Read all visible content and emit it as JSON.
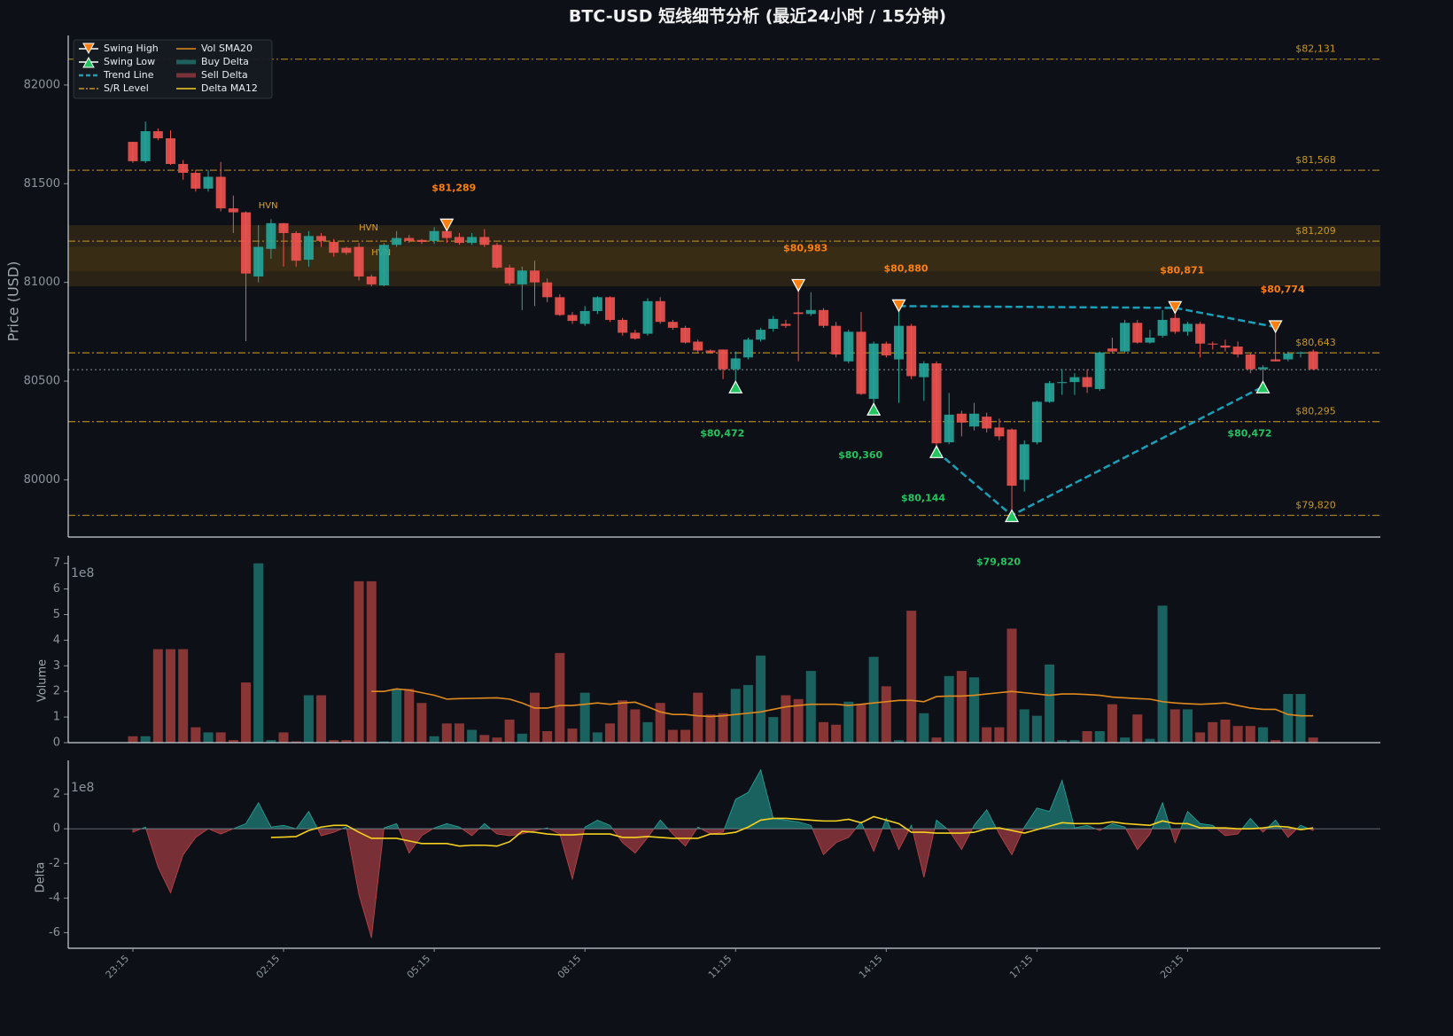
{
  "chart_data": {
    "type": "candlestick",
    "title": "BTC-USD 短线细节分析 (最近24小时 / 15分钟)",
    "ylabel": "Price (USD)",
    "ylim": [
      79710,
      82251
    ],
    "yticks": [
      80000,
      80500,
      81000,
      81500,
      82000
    ],
    "up_color": "#26a69a",
    "down_color": "#ef5350",
    "categories": [
      "23:15",
      null,
      null,
      null,
      null,
      null,
      null,
      null,
      null,
      null,
      null,
      null,
      "02:15",
      null,
      null,
      null,
      null,
      null,
      null,
      null,
      null,
      null,
      null,
      null,
      "05:15",
      null,
      null,
      null,
      null,
      null,
      null,
      null,
      null,
      null,
      null,
      null,
      "08:15",
      null,
      null,
      null,
      null,
      null,
      null,
      null,
      null,
      null,
      null,
      null,
      "11:15",
      null,
      null,
      null,
      null,
      null,
      null,
      null,
      null,
      null,
      null,
      null,
      "14:15",
      null,
      null,
      null,
      null,
      null,
      null,
      null,
      null,
      null,
      null,
      null,
      "17:15",
      null,
      null,
      null,
      null,
      null,
      null,
      null,
      null,
      null,
      null,
      null,
      "20:15",
      null,
      null,
      null,
      null,
      null,
      null,
      null,
      null,
      null,
      null
    ],
    "candles": [
      [
        81712,
        81712,
        81605,
        81614
      ],
      [
        81614,
        81815,
        81605,
        81766
      ],
      [
        81766,
        81780,
        81720,
        81730
      ],
      [
        81730,
        81770,
        81595,
        81600
      ],
      [
        81600,
        81620,
        81520,
        81555
      ],
      [
        81555,
        81570,
        81460,
        81475
      ],
      [
        81475,
        81570,
        81460,
        81535
      ],
      [
        81535,
        81610,
        81360,
        81375
      ],
      [
        81375,
        81440,
        81250,
        81355
      ],
      [
        81355,
        81360,
        80702,
        81045
      ],
      [
        81030,
        81290,
        81000,
        81180
      ],
      [
        81170,
        81320,
        81120,
        81300
      ],
      [
        81300,
        81300,
        81080,
        81250
      ],
      [
        81250,
        81260,
        81080,
        81110
      ],
      [
        81115,
        81260,
        81080,
        81235
      ],
      [
        81235,
        81250,
        81180,
        81210
      ],
      [
        81205,
        81220,
        81130,
        81150
      ],
      [
        81175,
        81180,
        81140,
        81150
      ],
      [
        81180,
        81200,
        81010,
        81030
      ],
      [
        81030,
        81040,
        80980,
        80990
      ],
      [
        80985,
        81200,
        80980,
        81190
      ],
      [
        81190,
        81260,
        81180,
        81225
      ],
      [
        81225,
        81240,
        81200,
        81210
      ],
      [
        81215,
        81220,
        81195,
        81205
      ],
      [
        81210,
        81280,
        81195,
        81260
      ],
      [
        81260,
        81289,
        81200,
        81225
      ],
      [
        81230,
        81250,
        81190,
        81200
      ],
      [
        81200,
        81250,
        81190,
        81230
      ],
      [
        81230,
        81270,
        81180,
        81190
      ],
      [
        81190,
        81200,
        81070,
        81075
      ],
      [
        81075,
        81090,
        80985,
        80995
      ],
      [
        80990,
        81080,
        80860,
        81060
      ],
      [
        81060,
        81110,
        80880,
        81000
      ],
      [
        81000,
        81020,
        80900,
        80925
      ],
      [
        80925,
        80940,
        80830,
        80835
      ],
      [
        80835,
        80850,
        80790,
        80805
      ],
      [
        80790,
        80880,
        80780,
        80855
      ],
      [
        80855,
        80930,
        80840,
        80925
      ],
      [
        80925,
        80930,
        80800,
        80810
      ],
      [
        80810,
        80820,
        80730,
        80745
      ],
      [
        80745,
        80760,
        80710,
        80715
      ],
      [
        80740,
        80920,
        80730,
        80905
      ],
      [
        80905,
        80925,
        80790,
        80800
      ],
      [
        80800,
        80810,
        80760,
        80770
      ],
      [
        80770,
        80780,
        80690,
        80695
      ],
      [
        80700,
        80710,
        80640,
        80655
      ],
      [
        80655,
        80660,
        80640,
        80645
      ],
      [
        80660,
        80660,
        80510,
        80560
      ],
      [
        80560,
        80650,
        80472,
        80615
      ],
      [
        80620,
        80720,
        80610,
        80710
      ],
      [
        80710,
        80770,
        80700,
        80760
      ],
      [
        80765,
        80830,
        80750,
        80815
      ],
      [
        80790,
        80810,
        80770,
        80780
      ],
      [
        80848,
        80983,
        80600,
        80840
      ],
      [
        80840,
        80950,
        80830,
        80860
      ],
      [
        80860,
        80870,
        80770,
        80780
      ],
      [
        80780,
        80800,
        80620,
        80635
      ],
      [
        80600,
        80760,
        80590,
        80750
      ],
      [
        80750,
        80850,
        80430,
        80435
      ],
      [
        80410,
        80700,
        80360,
        80690
      ],
      [
        80690,
        80700,
        80620,
        80630
      ],
      [
        80610,
        80880,
        80390,
        80780
      ],
      [
        80780,
        80790,
        80510,
        80525
      ],
      [
        80520,
        80600,
        80400,
        80590
      ],
      [
        80590,
        80600,
        80144,
        80185
      ],
      [
        80190,
        80440,
        80180,
        80330
      ],
      [
        80335,
        80350,
        80220,
        80290
      ],
      [
        80270,
        80390,
        80250,
        80335
      ],
      [
        80320,
        80340,
        80240,
        80260
      ],
      [
        80265,
        80310,
        80200,
        80220
      ],
      [
        80255,
        80260,
        79820,
        79970
      ],
      [
        80000,
        80200,
        79940,
        80180
      ],
      [
        80190,
        80400,
        80180,
        80395
      ],
      [
        80395,
        80500,
        80390,
        80490
      ],
      [
        80490,
        80560,
        80430,
        80495
      ],
      [
        80495,
        80540,
        80430,
        80520
      ],
      [
        80520,
        80560,
        80440,
        80470
      ],
      [
        80460,
        80650,
        80450,
        80645
      ],
      [
        80665,
        80720,
        80640,
        80650
      ],
      [
        80650,
        80810,
        80640,
        80795
      ],
      [
        80795,
        80810,
        80690,
        80695
      ],
      [
        80695,
        80760,
        80690,
        80720
      ],
      [
        80730,
        80860,
        80720,
        80810
      ],
      [
        80820,
        80871,
        80740,
        80750
      ],
      [
        80750,
        80800,
        80730,
        80790
      ],
      [
        80790,
        80800,
        80620,
        80690
      ],
      [
        80690,
        80700,
        80660,
        80685
      ],
      [
        80680,
        80710,
        80650,
        80670
      ],
      [
        80675,
        80700,
        80620,
        80635
      ],
      [
        80635,
        80640,
        80540,
        80560
      ],
      [
        80560,
        80580,
        80472,
        80570
      ],
      [
        80610,
        80774,
        80600,
        80600
      ],
      [
        80610,
        80650,
        80600,
        80640
      ],
      [
        80640,
        80650,
        80620,
        80645
      ],
      [
        80650,
        80660,
        80555,
        80560
      ]
    ],
    "swing_high": {
      "name": "Swing High",
      "color": "#ff7f0e",
      "points": [
        {
          "index": 25,
          "value": 81289,
          "label": "$81,289"
        },
        {
          "index": 53,
          "value": 80983,
          "label": "$80,983"
        },
        {
          "index": 61,
          "value": 80880,
          "label": "$80,880"
        },
        {
          "index": 83,
          "value": 80871,
          "label": "$80,871"
        },
        {
          "index": 91,
          "value": 80774,
          "label": "$80,774"
        }
      ]
    },
    "swing_low": {
      "name": "Swing Low",
      "color": "#22c55e",
      "points": [
        {
          "index": 48,
          "value": 80472,
          "label": "$80,472"
        },
        {
          "index": 59,
          "value": 80360,
          "label": "$80,360"
        },
        {
          "index": 64,
          "value": 80144,
          "label": "$80,144"
        },
        {
          "index": 70,
          "value": 79820,
          "label": "$79,820"
        },
        {
          "index": 90,
          "value": 80472,
          "label": "$80,472"
        }
      ]
    },
    "trend_line": {
      "name": "Trend Line",
      "color": "#1a9fb8",
      "lines": [
        {
          "x": [
            61,
            83,
            91
          ],
          "y": [
            80880,
            80871,
            80774
          ]
        },
        {
          "x": [
            64,
            70,
            90
          ],
          "y": [
            80144,
            79820,
            80472
          ]
        }
      ]
    },
    "sr_level": {
      "name": "S/R Level",
      "color": "#c8961e",
      "levels": [
        {
          "value": 82131,
          "label": "$82,131"
        },
        {
          "value": 81568,
          "label": "$81,568"
        },
        {
          "value": 81209,
          "label": "$81,209"
        },
        {
          "value": 80643,
          "label": "$80,643"
        },
        {
          "value": 80295,
          "label": "$80,295"
        },
        {
          "value": 79820,
          "label": "$79,820"
        }
      ]
    },
    "current_price": 80558,
    "hvn_zone": [
      80980,
      81290
    ],
    "hvn_labels": [
      {
        "text": "HVN",
        "x": 10,
        "y": 81390
      },
      {
        "text": "HVN",
        "x": 18,
        "y": 81277
      },
      {
        "text": "HVN",
        "x": 19,
        "y": 81151
      }
    ],
    "legend": "upper left",
    "volume": {
      "ylabel": "Volume",
      "scale_label": "1e8",
      "ylim": [
        0,
        7.3
      ],
      "yticks": [
        0,
        1,
        2,
        3,
        4,
        5,
        6,
        7
      ],
      "values": [
        0.25,
        0.25,
        3.65,
        3.65,
        3.65,
        0.6,
        0.4,
        0.4,
        0.1,
        2.35,
        7.0,
        0.1,
        0.4,
        0.05,
        1.85,
        1.85,
        0.1,
        0.1,
        6.3,
        6.3,
        0.05,
        2.1,
        2.1,
        1.55,
        0.25,
        0.75,
        0.75,
        0.5,
        0.3,
        0.2,
        0.9,
        0.35,
        1.95,
        0.45,
        3.5,
        0.55,
        1.95,
        0.4,
        0.75,
        1.65,
        1.3,
        0.8,
        1.55,
        0.5,
        0.5,
        1.95,
        1.1,
        1.15,
        2.1,
        2.25,
        3.4,
        1.0,
        1.85,
        1.7,
        2.8,
        0.8,
        0.7,
        1.6,
        1.5,
        3.35,
        2.2,
        0.1,
        5.15,
        1.15,
        0.2,
        2.6,
        2.8,
        2.55,
        0.6,
        0.6,
        4.45,
        1.3,
        1.05,
        3.05,
        0.1,
        0.1,
        0.45,
        0.45,
        1.5,
        0.2,
        1.1,
        0.15,
        5.35,
        1.3,
        1.3,
        0.4,
        0.8,
        0.9,
        0.65,
        0.65,
        0.6,
        0.1,
        1.9,
        1.9,
        0.2
      ],
      "sma": {
        "name": "Vol SMA20",
        "color": "#e08a1e",
        "values": [
          null,
          null,
          null,
          null,
          null,
          null,
          null,
          null,
          null,
          null,
          null,
          null,
          null,
          null,
          null,
          null,
          null,
          null,
          null,
          2.0,
          2.0,
          2.1,
          2.05,
          1.95,
          1.85,
          1.7,
          1.72,
          1.73,
          1.74,
          1.75,
          1.7,
          1.55,
          1.35,
          1.35,
          1.45,
          1.45,
          1.5,
          1.55,
          1.5,
          1.55,
          1.58,
          1.4,
          1.2,
          1.1,
          1.1,
          1.05,
          1.02,
          1.05,
          1.1,
          1.15,
          1.2,
          1.3,
          1.4,
          1.45,
          1.5,
          1.5,
          1.5,
          1.45,
          1.5,
          1.55,
          1.6,
          1.65,
          1.65,
          1.6,
          1.8,
          1.82,
          1.82,
          1.85,
          1.9,
          1.95,
          2.0,
          1.95,
          1.9,
          1.85,
          1.9,
          1.9,
          1.88,
          1.85,
          1.78,
          1.75,
          1.72,
          1.7,
          1.6,
          1.55,
          1.52,
          1.5,
          1.52,
          1.55,
          1.45,
          1.35,
          1.3,
          1.3,
          1.1,
          1.05,
          1.05
        ]
      }
    },
    "delta": {
      "ylabel": "Delta",
      "scale_label": "1e8",
      "ylim": [
        -6.9,
        3.95
      ],
      "yticks": [
        -6,
        -4,
        -2,
        0,
        2
      ],
      "values": [
        -0.2,
        0.1,
        -2.2,
        -3.7,
        -1.5,
        -0.5,
        0,
        -0.3,
        0,
        0.3,
        1.5,
        0.1,
        0.2,
        0,
        1.0,
        -0.4,
        -0.2,
        0.1,
        -3.8,
        -6.3,
        0.05,
        0.3,
        -1.4,
        -0.4,
        0.05,
        0.3,
        0.1,
        -0.4,
        0.3,
        -0.3,
        -0.4,
        -0.3,
        -0.1,
        0.05,
        -0.3,
        -2.9,
        0.1,
        0.5,
        0.2,
        -0.8,
        -1.4,
        -0.5,
        0.5,
        -0.3,
        -1.0,
        0.1,
        -0.3,
        -0.2,
        1.7,
        2.1,
        3.4,
        0.6,
        0.5,
        0.4,
        0.2,
        -1.5,
        -0.8,
        -0.5,
        0.4,
        -1.3,
        0.6,
        -1.2,
        0.2,
        -2.8,
        0.5,
        -0.1,
        -1.2,
        0.2,
        1.1,
        -0.3,
        -1.5,
        0.1,
        1.2,
        1.0,
        2.8,
        0.05,
        0.2,
        -0.1,
        0.3,
        0.1,
        -1.2,
        -0.3,
        1.5,
        -0.8,
        1.0,
        0.3,
        0.2,
        -0.4,
        -0.3,
        0.6,
        -0.2,
        0.5,
        -0.5,
        0.2,
        -0.1
      ],
      "buy": {
        "name": "Buy Delta",
        "color": "#26a69a"
      },
      "sell": {
        "name": "Sell Delta",
        "color": "#c0444a"
      },
      "ma": {
        "name": "Delta MA12",
        "color": "#f5d020",
        "values": [
          null,
          null,
          null,
          null,
          null,
          null,
          null,
          null,
          null,
          null,
          null,
          -0.5,
          -0.48,
          -0.45,
          -0.1,
          0.1,
          0.2,
          0.2,
          -0.2,
          -0.55,
          -0.55,
          -0.55,
          -0.7,
          -0.85,
          -0.85,
          -0.85,
          -1.0,
          -0.95,
          -0.95,
          -1.0,
          -0.75,
          -0.15,
          -0.2,
          -0.3,
          -0.35,
          -0.35,
          -0.3,
          -0.3,
          -0.3,
          -0.5,
          -0.5,
          -0.45,
          -0.5,
          -0.55,
          -0.55,
          -0.55,
          -0.3,
          -0.3,
          -0.2,
          0.1,
          0.5,
          0.6,
          0.6,
          0.55,
          0.5,
          0.45,
          0.45,
          0.55,
          0.35,
          0.7,
          0.5,
          0.3,
          -0.2,
          -0.2,
          -0.25,
          -0.25,
          -0.25,
          -0.2,
          0,
          0.05,
          -0.1,
          -0.25,
          -0.05,
          0.15,
          0.35,
          0.3,
          0.3,
          0.3,
          0.4,
          0.3,
          0.25,
          0.2,
          0.45,
          0.3,
          0.3,
          0.05,
          0.05,
          0.05,
          0,
          0,
          0.05,
          0.15,
          0.1,
          -0.05,
          0.05
        ]
      }
    }
  }
}
